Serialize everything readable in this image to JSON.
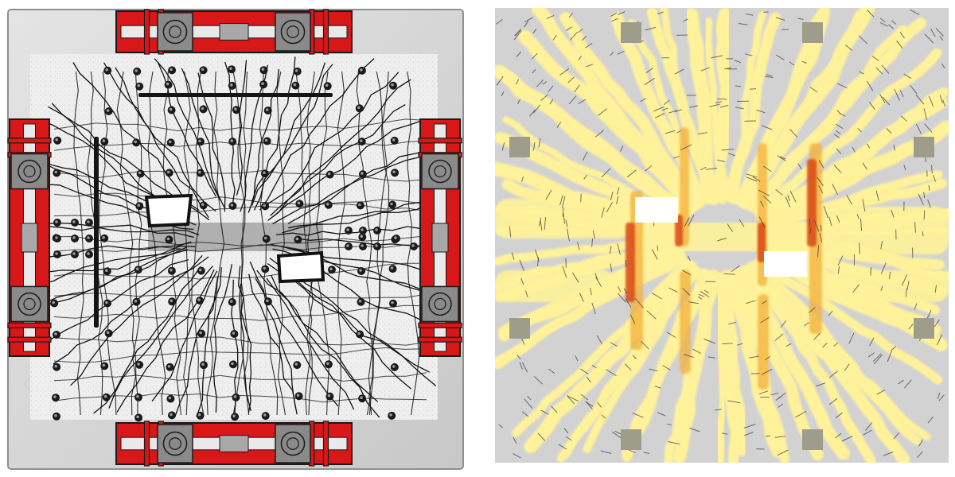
{
  "figure": {
    "panels": [
      {
        "id": "experimental-crack-pattern"
      },
      {
        "id": "numerical-damage-contour"
      }
    ]
  },
  "colors": {
    "background": "#ffffff",
    "slab_grey": "#d2d2d2",
    "slab_edge": "#9a9a9a",
    "support_red": "#d81818",
    "support_dark": "#1a1a1a",
    "support_pad": "#8a8a8a",
    "crack": "#111111",
    "damage_low": "#fff29a",
    "damage_mid": "#f3b13b",
    "damage_high": "#d94a16",
    "opening": "#ffffff",
    "column_stub": "#9e9d8c"
  },
  "icons": {
    "support": "steel-support-frame-icon",
    "anchor": "anchor-bolt-icon",
    "column": "column-stub-icon"
  }
}
